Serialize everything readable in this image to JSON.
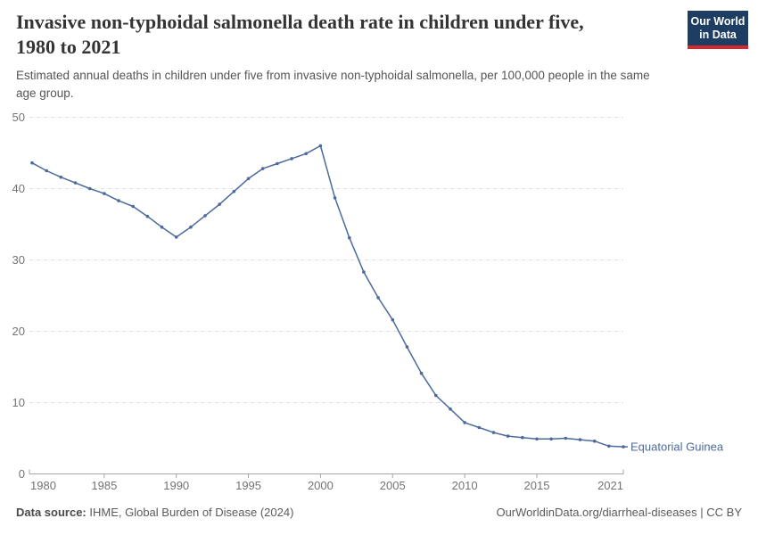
{
  "header": {
    "title": "Invasive non-typhoidal salmonella death rate in children under five, 1980 to 2021",
    "title_lines": [
      "Invasive non-typhoidal salmonella death rate in children under five,",
      "1980 to 2021"
    ],
    "subtitle": "Estimated annual deaths in children under five from invasive non-typhoidal salmonella, per 100,000 people in the same age group.",
    "subtitle_lines": [
      "Estimated annual deaths in children under five from invasive non-typhoidal salmonella, per 100,000 people in the same",
      "age group."
    ],
    "logo": {
      "line1": "Our World",
      "line2": "in Data"
    }
  },
  "chart_data": {
    "type": "line",
    "title": "Invasive non-typhoidal salmonella death rate in children under five, 1980 to 2021",
    "xlabel": "",
    "ylabel": "",
    "xlim": [
      1980,
      2021
    ],
    "ylim": [
      0,
      50
    ],
    "x_ticks": [
      1980,
      1985,
      1990,
      1995,
      2000,
      2005,
      2010,
      2015,
      2021
    ],
    "y_ticks": [
      0,
      10,
      20,
      30,
      40,
      50
    ],
    "grid": "horizontal-dashed",
    "legend_position": "end-of-line-label",
    "series": [
      {
        "name": "Equatorial Guinea",
        "color": "#4C6A9C",
        "x": [
          1980,
          1981,
          1982,
          1983,
          1984,
          1985,
          1986,
          1987,
          1988,
          1989,
          1990,
          1991,
          1992,
          1993,
          1994,
          1995,
          1996,
          1997,
          1998,
          1999,
          2000,
          2001,
          2002,
          2003,
          2004,
          2005,
          2006,
          2007,
          2008,
          2009,
          2010,
          2011,
          2012,
          2013,
          2014,
          2015,
          2016,
          2017,
          2018,
          2019,
          2020,
          2021
        ],
        "values": [
          43.6,
          42.5,
          41.6,
          40.8,
          40.0,
          39.3,
          38.3,
          37.5,
          36.1,
          34.6,
          33.2,
          34.6,
          36.2,
          37.8,
          39.6,
          41.4,
          42.8,
          43.5,
          44.2,
          44.9,
          46.0,
          38.7,
          33.1,
          28.3,
          24.7,
          21.6,
          17.8,
          14.1,
          11.0,
          9.1,
          7.2,
          6.5,
          5.8,
          5.3,
          5.1,
          4.9,
          4.9,
          5.0,
          4.8,
          4.6,
          3.9,
          3.8
        ]
      }
    ]
  },
  "footer": {
    "source_label": "Data source:",
    "source_value": "IHME, Global Burden of Disease (2024)",
    "credit": "OurWorldinData.org/diarrheal-diseases | CC BY"
  },
  "colors": {
    "line": "#4C6A9C",
    "gridline": "#e0e0e0",
    "axis": "#a5a5a5",
    "tick_text": "#737373",
    "logo_bg": "#1d3d63",
    "logo_red": "#d7282f"
  }
}
